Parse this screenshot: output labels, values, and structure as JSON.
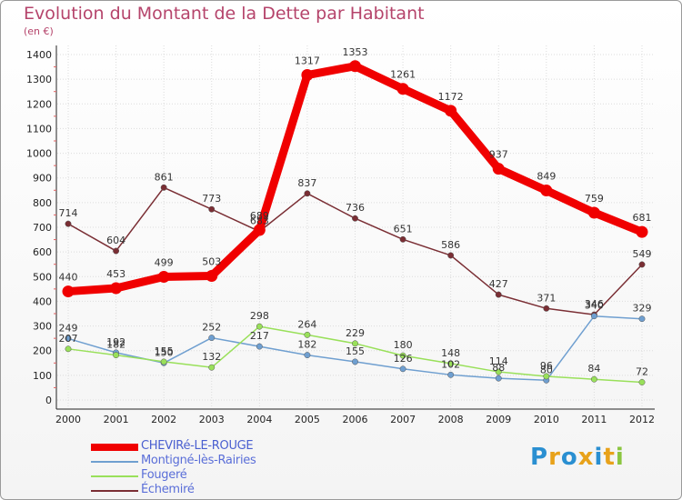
{
  "title": "Evolution du Montant de la Dette par Habitant",
  "subtitle": "(en €)",
  "logo": {
    "text": "Proxiti",
    "letters": [
      {
        "ch": "P",
        "color": "#2a8fd1"
      },
      {
        "ch": "r",
        "color": "#e8a21a"
      },
      {
        "ch": "o",
        "color": "#2a8fd1"
      },
      {
        "ch": "x",
        "color": "#e8a21a"
      },
      {
        "ch": "i",
        "color": "#2a8fd1"
      },
      {
        "ch": "t",
        "color": "#e8a21a"
      },
      {
        "ch": "i",
        "color": "#8bc53f"
      }
    ]
  },
  "chart_data": {
    "type": "line",
    "title": "Evolution du Montant de la Dette par Habitant",
    "subtitle": "(en €)",
    "xlabel": "",
    "ylabel": "",
    "x": [
      "2000",
      "2001",
      "2002",
      "2003",
      "2004",
      "2005",
      "2006",
      "2007",
      "2008",
      "2009",
      "2010",
      "2011",
      "2012"
    ],
    "ylim": [
      0,
      1400
    ],
    "yticks": [
      0,
      100,
      200,
      300,
      400,
      500,
      600,
      700,
      800,
      900,
      1000,
      1100,
      1200,
      1300,
      1400
    ],
    "grid": true,
    "legend_position": "bottom-left",
    "series": [
      {
        "name": "CHEVIRé-LE-ROUGE",
        "color": "#f00000",
        "values": [
          440,
          453,
          499,
          503,
          689,
          1317,
          1353,
          1261,
          1172,
          937,
          849,
          759,
          681
        ]
      },
      {
        "name": "Montigné-lès-Rairies",
        "color": "#6f9fd0",
        "values": [
          249,
          192,
          150,
          252,
          217,
          182,
          155,
          126,
          102,
          88,
          80,
          340,
          329
        ]
      },
      {
        "name": "Fougeré",
        "color": "#99e05a",
        "values": [
          207,
          182,
          155,
          132,
          298,
          264,
          229,
          180,
          148,
          114,
          96,
          84,
          72
        ]
      },
      {
        "name": "Échemiré",
        "color": "#7a2e34",
        "values": [
          714,
          604,
          861,
          773,
          683,
          837,
          736,
          651,
          586,
          427,
          371,
          346,
          549
        ]
      }
    ]
  }
}
